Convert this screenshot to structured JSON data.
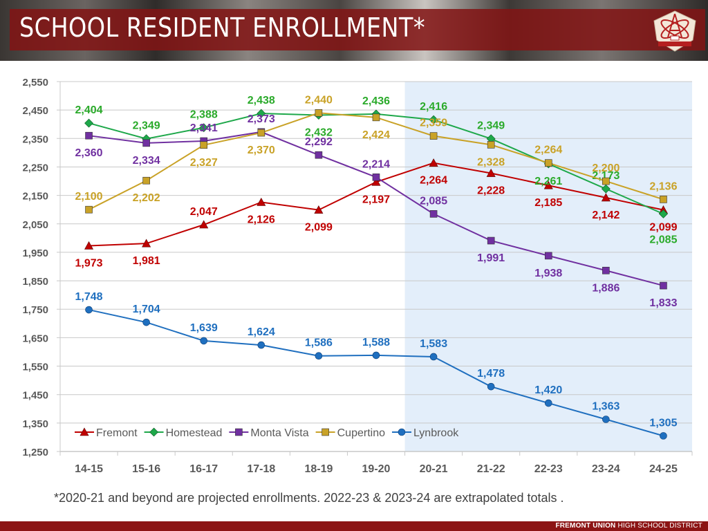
{
  "header": {
    "title": "SCHOOL RESIDENT ENROLLMENT*",
    "logo_icon": "district-crest-icon"
  },
  "footnote": "*2020-21 and beyond are projected enrollments. 2022-23 & 2023-24 are extrapolated totals .",
  "footer": {
    "brand_bold": "FREMONT UNION",
    "brand_thin": " HIGH SCHOOL DISTRICT"
  },
  "colors": {
    "header_band": "#821414",
    "projection_shade": "#e3eefa",
    "Fremont": "#c00000",
    "Homestead": "#1ea84a",
    "Monta Vista": "#7030a0",
    "Cupertino": "#c9a227",
    "Lynbrook": "#1f6fbf"
  },
  "chart_data": {
    "type": "line",
    "title": "",
    "xlabel": "",
    "ylabel": "",
    "categories": [
      "14-15",
      "15-16",
      "16-17",
      "17-18",
      "18-19",
      "19-20",
      "20-21",
      "21-22",
      "22-23",
      "23-24",
      "24-25"
    ],
    "ylim": [
      1250,
      2550
    ],
    "yticks": [
      1250,
      1350,
      1450,
      1550,
      1650,
      1750,
      1850,
      1950,
      2050,
      2150,
      2250,
      2350,
      2450,
      2550
    ],
    "ytick_labels": [
      "1,250",
      "1,350",
      "1,450",
      "1,550",
      "1,650",
      "1,750",
      "1,850",
      "1,950",
      "2,050",
      "2,150",
      "2,250",
      "2,350",
      "2,450",
      "2,550"
    ],
    "grid": true,
    "legend_position": "bottom-left-inside",
    "projection_start_category": "20-21",
    "series": [
      {
        "name": "Fremont",
        "marker": "triangle",
        "values": [
          1973,
          1981,
          2047,
          2126,
          2099,
          2197,
          2264,
          2228,
          2185,
          2142,
          2099
        ],
        "labels": [
          "1,973",
          "1,981",
          "2,047",
          "2,126",
          "2,099",
          "2,197",
          "2,264",
          "2,228",
          "2,185",
          "2,142",
          "2,099"
        ]
      },
      {
        "name": "Homestead",
        "marker": "diamond",
        "values": [
          2404,
          2349,
          2388,
          2438,
          2432,
          2436,
          2416,
          2349,
          2261,
          2173,
          2085
        ],
        "labels": [
          "2,404",
          "2,349",
          "2,388",
          "2,438",
          "2,432",
          "2,436",
          "2,416",
          "2,349",
          "2,261",
          "2,173",
          "2,085"
        ]
      },
      {
        "name": "Monta Vista",
        "marker": "square",
        "values": [
          2360,
          2334,
          2341,
          2373,
          2292,
          2214,
          2085,
          1991,
          1938,
          1886,
          1833
        ],
        "labels": [
          "2,360",
          "2,334",
          "2,341",
          "2,373",
          "2,292",
          "2,214",
          "2,085",
          "1,991",
          "1,938",
          "1,886",
          "1,833"
        ]
      },
      {
        "name": "Cupertino",
        "marker": "square",
        "values": [
          2100,
          2202,
          2327,
          2370,
          2440,
          2424,
          2359,
          2328,
          2264,
          2200,
          2136
        ],
        "labels": [
          "2,100",
          "2,202",
          "2,327",
          "2,370",
          "2,440",
          "2,424",
          "2,359",
          "2,328",
          "2,264",
          "2,200",
          "2,136"
        ]
      },
      {
        "name": "Lynbrook",
        "marker": "circle",
        "values": [
          1748,
          1704,
          1639,
          1624,
          1586,
          1588,
          1583,
          1478,
          1420,
          1363,
          1305
        ],
        "labels": [
          "1,748",
          "1,704",
          "1,639",
          "1,624",
          "1,586",
          "1,588",
          "1,583",
          "1,478",
          "1,420",
          "1,363",
          "1,305"
        ]
      }
    ]
  }
}
